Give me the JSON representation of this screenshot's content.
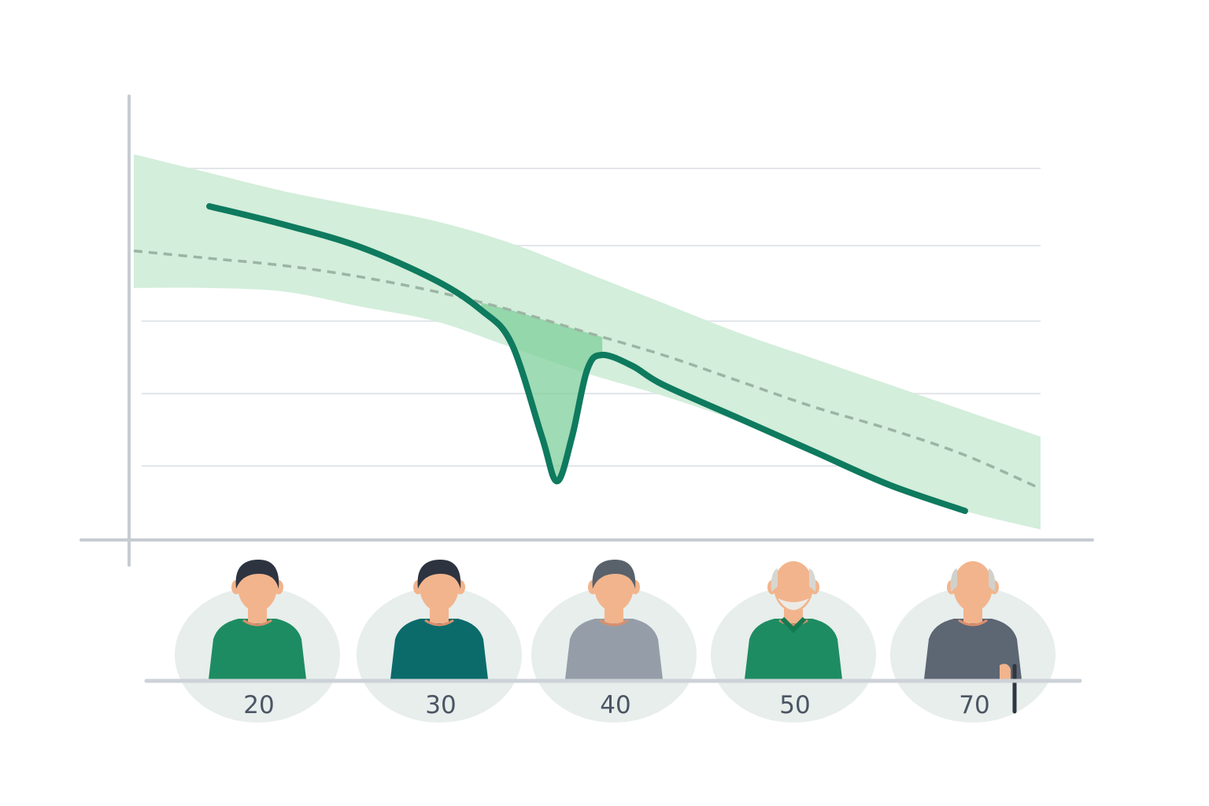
{
  "chart_data": {
    "type": "line",
    "title": "",
    "xlabel": "",
    "ylabel": "",
    "xlim": [
      15,
      75
    ],
    "ylim": [
      0,
      100
    ],
    "grid": true,
    "legend": "none",
    "x_tick_labels": [
      "20",
      "30",
      "40",
      "50",
      "70"
    ],
    "series": [
      {
        "style": "solid",
        "x": [
          20,
          25,
          30,
          35,
          38,
          40,
          42,
          43,
          44,
          45,
          46,
          48,
          50,
          55,
          60,
          65,
          70
        ],
        "values": [
          86,
          81,
          75,
          66,
          58,
          49,
          24,
          12,
          24,
          42,
          46,
          43,
          38,
          29,
          20,
          11,
          4
        ]
      },
      {
        "style": "dashed",
        "x": [
          15,
          20,
          25,
          30,
          35,
          40,
          45,
          50,
          55,
          60,
          65,
          70,
          75
        ],
        "values": [
          74,
          72,
          70,
          67,
          63,
          58,
          52,
          46,
          39,
          32,
          26,
          19,
          10
        ]
      },
      {
        "style": "band",
        "x": [
          15,
          20,
          25,
          30,
          35,
          40,
          45,
          50,
          55,
          60,
          65,
          70,
          75
        ],
        "upper": [
          100,
          95,
          90,
          86,
          82,
          76,
          68,
          60,
          52,
          45,
          38,
          31,
          24
        ],
        "lower": [
          64,
          64,
          63,
          59,
          55,
          48,
          41,
          35,
          28,
          19,
          11,
          4,
          -1
        ]
      }
    ]
  },
  "figures": [
    {
      "age": "20",
      "icon": "young-man-icon",
      "shirt": "#1e8c62",
      "hair": "#2d3440"
    },
    {
      "age": "30",
      "icon": "adult-man-icon",
      "shirt": "#0b6b6b",
      "hair": "#2d3440"
    },
    {
      "age": "40",
      "icon": "middle-aged-man-icon",
      "shirt": "#959ea8",
      "hair": "#59616a"
    },
    {
      "age": "50",
      "icon": "bearded-older-man-icon",
      "shirt": "#1e8c62",
      "hair": "#d7d7d2"
    },
    {
      "age": "70",
      "icon": "elderly-man-with-cane-icon",
      "shirt": "#5d6673",
      "hair": "#d1d1cc"
    }
  ],
  "colors": {
    "line": "#0e7a5e",
    "band": "#d3eedb",
    "band_dip": "#7fcf9b",
    "dashed": "#9db4a4",
    "grid": "#e3e6ea",
    "axis": "#c7ccd3",
    "skin": "#f2b48c",
    "halo": "#e7eeec"
  }
}
